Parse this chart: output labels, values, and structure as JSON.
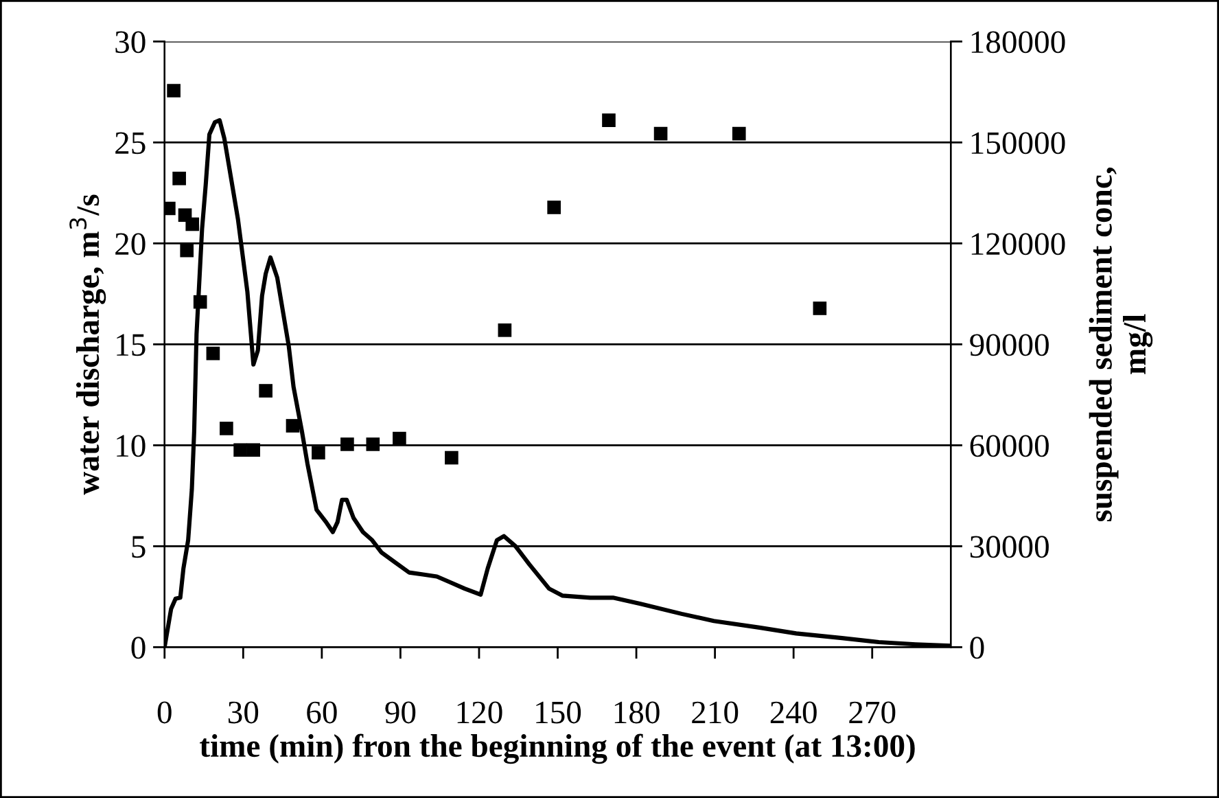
{
  "chart_data": {
    "type": "line",
    "xlabel": "time (min) fron the beginning of the event (at 13:00)",
    "ylabel": "water discharge, m$^{3}$/s",
    "y2label": "suspended sediment conc,\nmg/l",
    "xlim": [
      0,
      300
    ],
    "xticks": [
      0,
      30,
      60,
      90,
      120,
      150,
      180,
      210,
      240,
      270
    ],
    "ylim": [
      0,
      30
    ],
    "yticks": [
      0,
      5,
      10,
      15,
      20,
      25,
      30
    ],
    "y2lim": [
      0,
      180000
    ],
    "y2ticks": [
      0,
      30000,
      60000,
      90000,
      120000,
      150000,
      180000
    ],
    "grid": "y",
    "series": [
      {
        "color": "#000000",
        "marker": "none",
        "line_style": "solid",
        "x": [
          0,
          2.5,
          4.2,
          6,
          7.2,
          9,
          10.4,
          11.3,
          12.2,
          14.3,
          15.7,
          17.1,
          19.2,
          21,
          22.8,
          24.5,
          28,
          31.6,
          33.9,
          35.6,
          37.2,
          38.6,
          40.4,
          43,
          47.4,
          49.2,
          52.4,
          54.5,
          58,
          61.6,
          64.2,
          66,
          67.7,
          69.5,
          72.1,
          75.7,
          79.2,
          82.7,
          88,
          93.3,
          98.6,
          103.9,
          109.2,
          114.5,
          120.6,
          123.3,
          126.8,
          129.5,
          133.9,
          139.2,
          146.7,
          151.9,
          162.4,
          171.1,
          181.6,
          197.3,
          209.6,
          227,
          241,
          258.5,
          272.5,
          286.5,
          300
        ],
        "values": [
          0,
          1.9,
          2.4,
          2.45,
          3.9,
          5.3,
          7.8,
          10.7,
          15.5,
          20.7,
          22.9,
          25.4,
          26.0,
          26.1,
          25.2,
          23.9,
          21.2,
          17.6,
          14.0,
          14.7,
          17.4,
          18.5,
          19.3,
          18.3,
          14.9,
          12.9,
          10.7,
          9.1,
          6.8,
          6.2,
          5.7,
          6.2,
          7.3,
          7.3,
          6.4,
          5.7,
          5.3,
          4.7,
          4.2,
          3.7,
          3.6,
          3.5,
          3.2,
          2.9,
          2.6,
          3.9,
          5.3,
          5.5,
          5.0,
          4.1,
          2.9,
          2.55,
          2.45,
          2.45,
          2.15,
          1.65,
          1.3,
          0.97,
          0.68,
          0.45,
          0.25,
          0.14,
          0.07
        ]
      },
      {
        "type": "scatter",
        "axis": "y2",
        "color": "#000000",
        "marker": "square",
        "x": [
          1.6,
          3.5,
          5.6,
          7.8,
          8.5,
          10.6,
          13.6,
          18.5,
          23.6,
          28.9,
          33.9,
          38.6,
          48.9,
          58.7,
          69.7,
          79.5,
          89.6,
          109.5,
          129.8,
          148.6,
          169.5,
          189.3,
          219.2,
          250
        ],
        "values": [
          130400,
          165400,
          139300,
          128400,
          117900,
          125700,
          102600,
          87300,
          65000,
          58600,
          58600,
          76200,
          65800,
          57800,
          60300,
          60300,
          62000,
          56300,
          94200,
          130700,
          156600,
          152600,
          152600,
          100700
        ]
      }
    ]
  }
}
